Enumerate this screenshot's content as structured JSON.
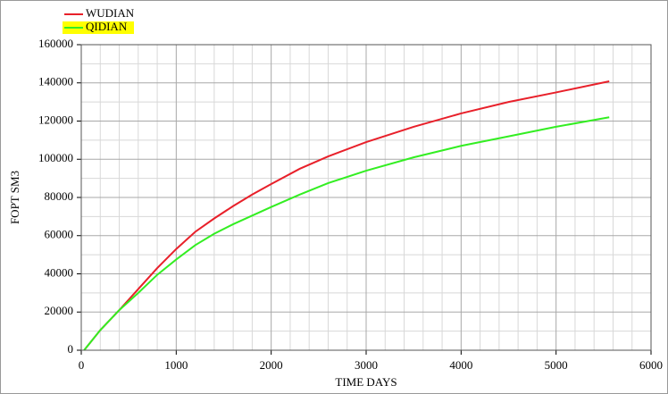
{
  "chart_data": {
    "type": "line",
    "x_label": "TIME DAYS",
    "y_label": "FOPT SM3",
    "x": [
      30,
      200,
      400,
      600,
      800,
      1000,
      1200,
      1400,
      1600,
      1800,
      2000,
      2300,
      2600,
      3000,
      3500,
      4000,
      4500,
      5000,
      5560
    ],
    "series": [
      {
        "name": "WUDIAN",
        "color": "#e8202a",
        "values": [
          0,
          10500,
          21000,
          32000,
          43000,
          53000,
          62000,
          69000,
          75500,
          81500,
          87000,
          95000,
          101500,
          109000,
          117000,
          124000,
          130000,
          135000,
          140800
        ]
      },
      {
        "name": "QIDIAN",
        "color": "#33ee22",
        "highlight": "#ffff00",
        "values": [
          0,
          10500,
          21000,
          30000,
          39500,
          47500,
          55000,
          61000,
          66000,
          70500,
          75000,
          81500,
          87500,
          94000,
          101000,
          107000,
          112000,
          117000,
          122000
        ]
      }
    ],
    "xlim": [
      0,
      6000
    ],
    "xticks": [
      0,
      1000,
      2000,
      3000,
      4000,
      5000,
      6000
    ],
    "ylim": [
      0,
      160000
    ],
    "yticks": [
      0,
      20000,
      40000,
      60000,
      80000,
      100000,
      120000,
      140000,
      160000
    ],
    "minor_xticks": [
      200,
      400,
      600,
      800,
      1200,
      1400,
      1600,
      1800,
      2200,
      2400,
      2600,
      2800,
      3200,
      3400,
      3600,
      3800,
      4200,
      4400,
      4600,
      4800,
      5200,
      5400,
      5600,
      5800
    ],
    "minor_yticks": [
      10000,
      30000,
      50000,
      70000,
      90000,
      110000,
      130000,
      150000
    ],
    "grid": true,
    "legend": "top-left"
  }
}
